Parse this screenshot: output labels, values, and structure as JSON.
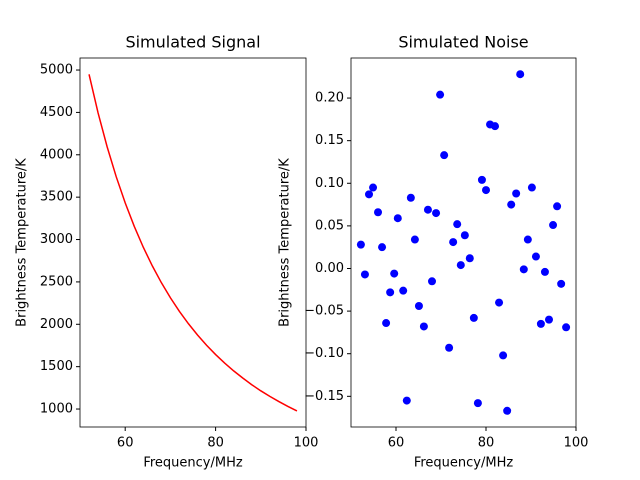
{
  "chart_data": [
    {
      "type": "line",
      "title": "Simulated Signal",
      "xlabel": "Frequency/MHz",
      "ylabel": "Brightness Temperature/K",
      "color": "#ff0000",
      "x": [
        52,
        54,
        56,
        58,
        60,
        62,
        64,
        66,
        68,
        70,
        72,
        74,
        76,
        78,
        80,
        82,
        84,
        86,
        88,
        90,
        92,
        94,
        96,
        98
      ],
      "values": [
        4950,
        4494,
        4095,
        3743,
        3432,
        3156,
        2909,
        2689,
        2491,
        2313,
        2152,
        2006,
        1874,
        1753,
        1643,
        1542,
        1450,
        1366,
        1287,
        1215,
        1149,
        1088,
        1031,
        978
      ],
      "xlim": [
        50,
        100
      ],
      "xticks": [
        60,
        80,
        100
      ],
      "ylim": [
        788,
        5142
      ],
      "yticks": [
        1000,
        1500,
        2000,
        2500,
        3000,
        3500,
        4000,
        4500,
        5000
      ]
    },
    {
      "type": "scatter",
      "title": "Simulated Noise",
      "xlabel": "Frequency/MHz",
      "ylabel": "Brightness Temperature/K",
      "color": "#0000ff",
      "x": [
        52.2,
        53.1,
        54.0,
        54.9,
        56.0,
        56.9,
        57.8,
        58.7,
        59.6,
        60.4,
        61.6,
        62.4,
        63.3,
        64.2,
        65.1,
        66.2,
        67.1,
        68.0,
        68.9,
        69.8,
        70.7,
        71.8,
        72.7,
        73.6,
        74.4,
        75.3,
        76.4,
        77.3,
        78.2,
        79.1,
        80.0,
        80.9,
        82.0,
        82.9,
        83.8,
        84.7,
        85.6,
        86.7,
        87.6,
        88.4,
        89.3,
        90.2,
        91.1,
        92.2,
        93.1,
        94.0,
        94.9,
        95.8,
        96.7,
        97.8
      ],
      "values": [
        0.028,
        -0.007,
        0.087,
        0.095,
        0.066,
        0.025,
        -0.064,
        -0.028,
        -0.006,
        0.059,
        -0.026,
        -0.155,
        0.083,
        0.034,
        -0.044,
        -0.068,
        0.069,
        -0.015,
        0.065,
        0.204,
        0.133,
        -0.093,
        0.031,
        0.052,
        0.004,
        0.039,
        0.012,
        -0.058,
        -0.158,
        0.104,
        0.092,
        0.169,
        0.167,
        -0.04,
        -0.102,
        -0.167,
        0.075,
        0.088,
        0.228,
        -0.001,
        0.034,
        0.095,
        0.014,
        -0.065,
        -0.004,
        -0.06,
        0.051,
        0.073,
        -0.018,
        -0.069
      ],
      "xlim": [
        50,
        100
      ],
      "xticks": [
        60,
        80,
        100
      ],
      "ylim": [
        -0.186,
        0.247
      ],
      "yticks": [
        {
          "value": -0.15,
          "label": "−0.15"
        },
        {
          "value": -0.1,
          "label": "−0.10"
        },
        {
          "value": -0.05,
          "label": "−0.05"
        },
        {
          "value": 0,
          "label": "0.00"
        },
        0.05,
        {
          "value": 0.1,
          "label": "0.10"
        },
        0.15,
        {
          "value": 0.2,
          "label": "0.20"
        }
      ]
    }
  ]
}
